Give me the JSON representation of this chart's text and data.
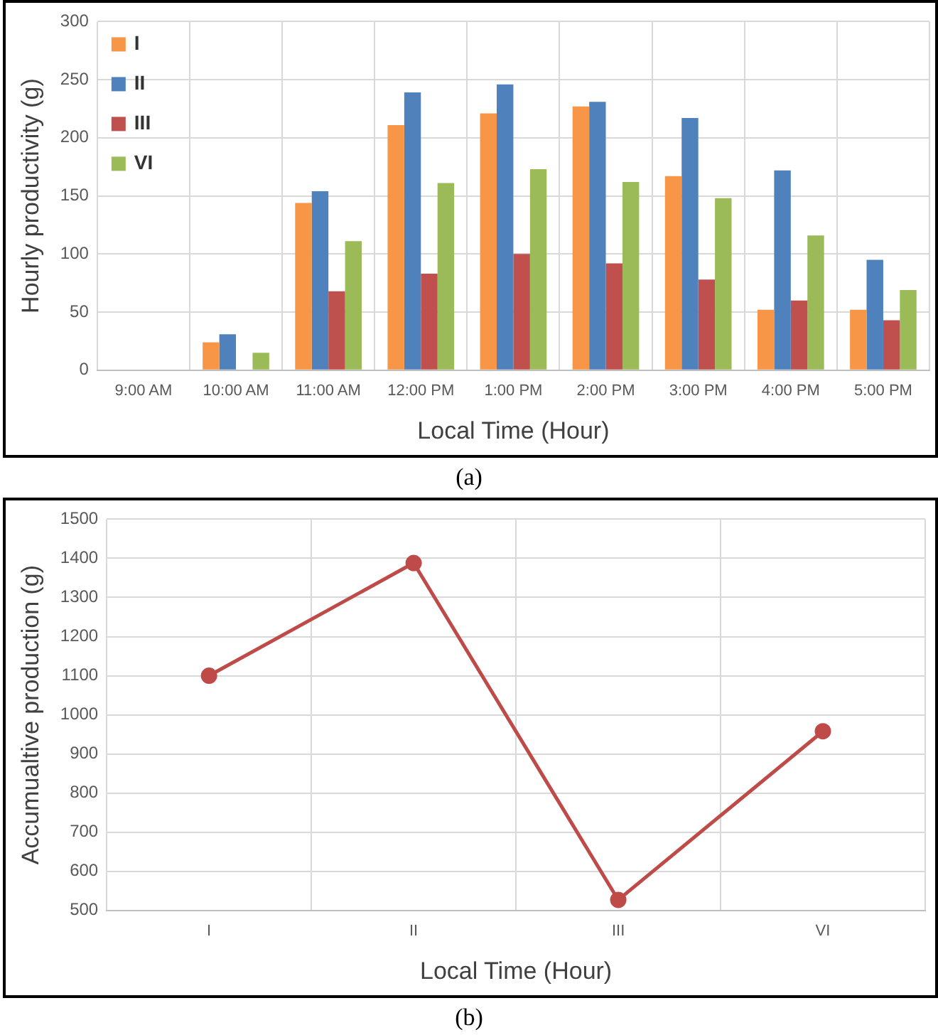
{
  "chart_data": [
    {
      "type": "bar",
      "xlabel": "Local Time (Hour)",
      "ylabel": "Hourly productivity (g)",
      "categories": [
        "9:00 AM",
        "10:00 AM",
        "11:00 AM",
        "12:00 PM",
        "1:00 PM",
        "2:00 PM",
        "3:00 PM",
        "4:00 PM",
        "5:00 PM"
      ],
      "series": [
        {
          "name": "I",
          "color": "#f79646",
          "values": [
            0,
            24,
            144,
            211,
            221,
            227,
            167,
            52,
            52
          ]
        },
        {
          "name": "II",
          "color": "#4f81bd",
          "values": [
            0,
            31,
            154,
            239,
            246,
            231,
            217,
            172,
            95
          ]
        },
        {
          "name": "III",
          "color": "#c0504d",
          "values": [
            0,
            0,
            68,
            83,
            100,
            92,
            78,
            60,
            43
          ]
        },
        {
          "name": "VI",
          "color": "#9bbb59",
          "values": [
            0,
            15,
            111,
            161,
            173,
            162,
            148,
            116,
            69
          ]
        }
      ],
      "ylim": [
        0,
        300
      ],
      "yticks": [
        0,
        50,
        100,
        150,
        200,
        250,
        300
      ],
      "grid": true,
      "legend": "top left",
      "annotations": [
        "(a)"
      ]
    },
    {
      "type": "line",
      "xlabel": "Local Time (Hour)",
      "ylabel": "Accumualtive production (g)",
      "categories": [
        "I",
        "II",
        "III",
        "VI"
      ],
      "series": [
        {
          "color": "#be4b48",
          "values": [
            1100,
            1388,
            527,
            958
          ]
        }
      ],
      "ylim": [
        500,
        1500
      ],
      "yticks": [
        500,
        600,
        700,
        800,
        900,
        1000,
        1100,
        1200,
        1300,
        1400,
        1500
      ],
      "grid": true,
      "marker": "circle",
      "line_style": "solid",
      "annotations": [
        "(b)"
      ]
    }
  ]
}
